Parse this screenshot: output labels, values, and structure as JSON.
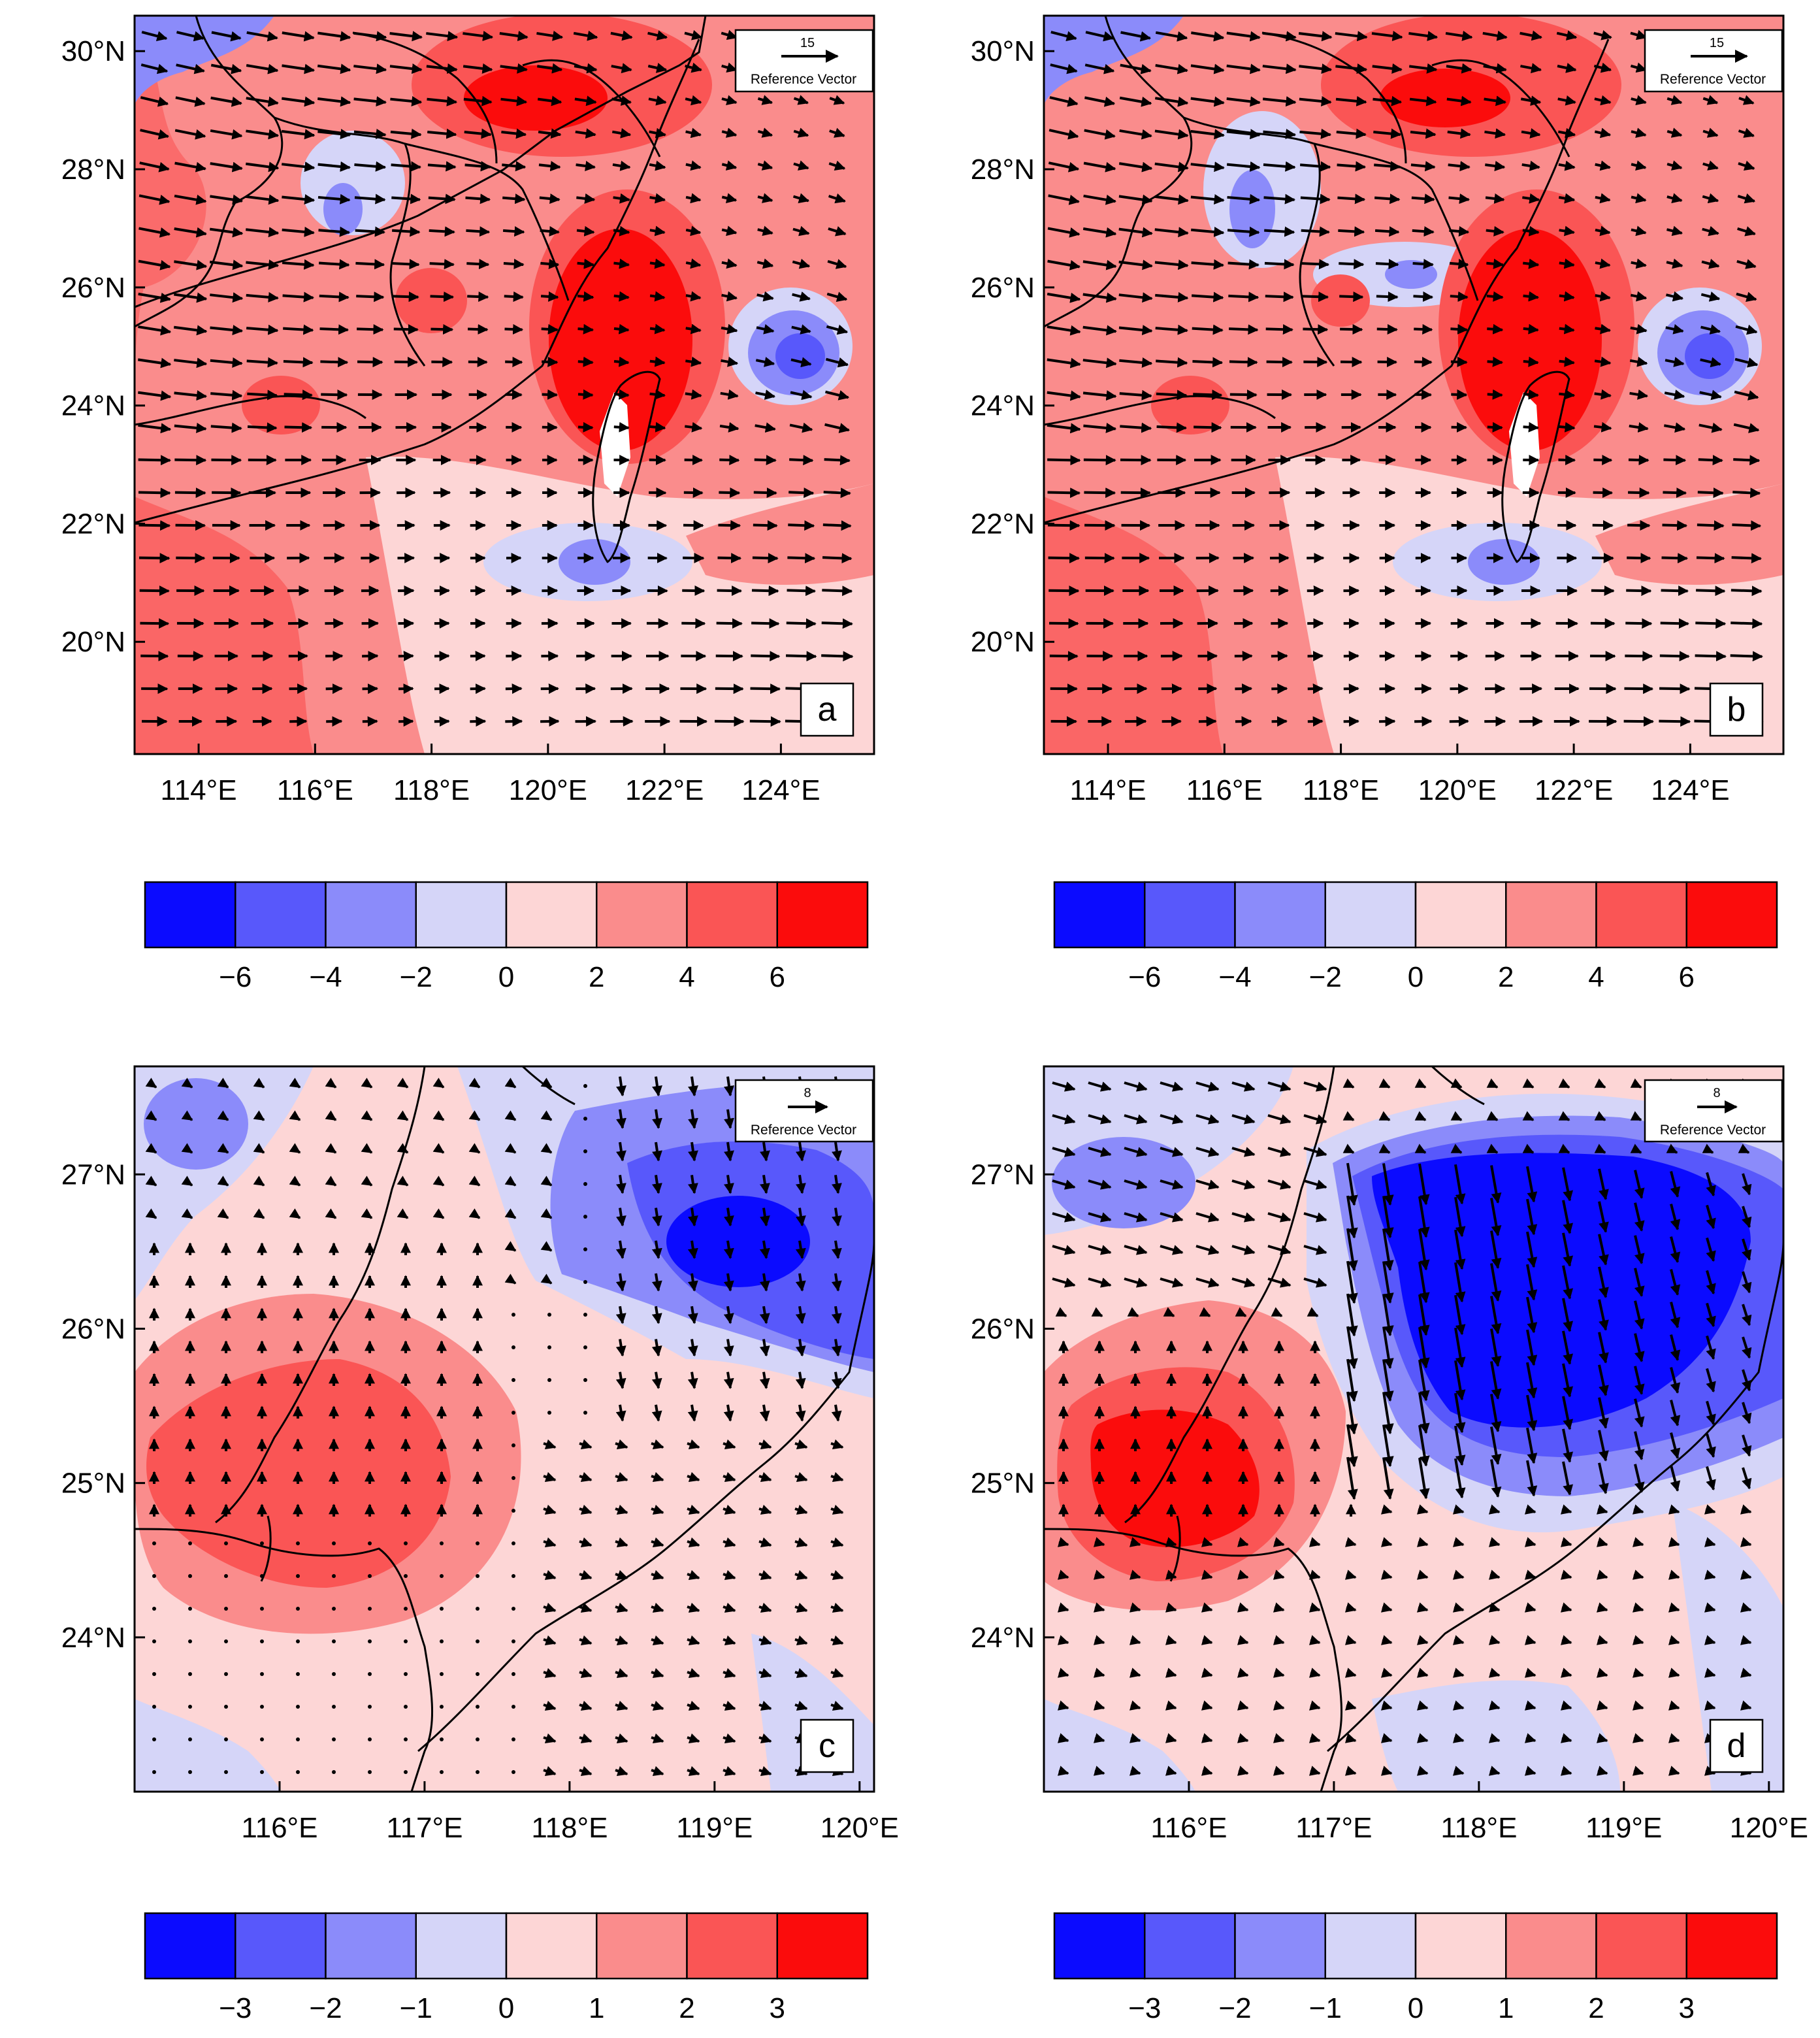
{
  "colors": {
    "levels": [
      "#0b0bff",
      "#5858fb",
      "#8b8bfa",
      "#d5d5f8",
      "#fdd6d6",
      "#fa8c8c",
      "#fa5555",
      "#fb0c0c"
    ],
    "land_border": "#000000",
    "arrow": "#000000",
    "missing": "#ffffff"
  },
  "panels": [
    {
      "letter": "a",
      "lon_range": [
        112.9,
        125.6
      ],
      "lat_range": [
        18.1,
        30.6
      ],
      "lon_ticks": [
        "114°E",
        "116°E",
        "118°E",
        "120°E",
        "122°E",
        "124°E"
      ],
      "lon_values": [
        114,
        116,
        118,
        120,
        122,
        124
      ],
      "lat_ticks": [
        "30°N",
        "28°N",
        "26°N",
        "24°N",
        "22°N",
        "20°N"
      ],
      "lat_values": [
        30,
        28,
        26,
        24,
        22,
        20
      ],
      "ref_vector": {
        "value": "15",
        "label": "Reference Vector"
      },
      "colorbar": {
        "labels": [
          "−6",
          "−4",
          "−2",
          "0",
          "2",
          "4",
          "6"
        ]
      }
    },
    {
      "letter": "b",
      "lon_range": [
        112.9,
        125.6
      ],
      "lat_range": [
        18.1,
        30.6
      ],
      "lon_ticks": [
        "114°E",
        "116°E",
        "118°E",
        "120°E",
        "122°E",
        "124°E"
      ],
      "lon_values": [
        114,
        116,
        118,
        120,
        122,
        124
      ],
      "lat_ticks": [
        "30°N",
        "28°N",
        "26°N",
        "24°N",
        "22°N",
        "20°N"
      ],
      "lat_values": [
        30,
        28,
        26,
        24,
        22,
        20
      ],
      "ref_vector": {
        "value": "15",
        "label": "Reference Vector"
      },
      "colorbar": {
        "labels": [
          "−6",
          "−4",
          "−2",
          "0",
          "2",
          "4",
          "6"
        ]
      }
    },
    {
      "letter": "c",
      "lon_range": [
        115.0,
        120.1
      ],
      "lat_range": [
        23.0,
        27.7
      ],
      "lon_ticks": [
        "116°E",
        "117°E",
        "118°E",
        "119°E",
        "120°E"
      ],
      "lon_values": [
        116,
        117,
        118,
        119,
        120
      ],
      "lat_ticks": [
        "27°N",
        "26°N",
        "25°N",
        "24°N"
      ],
      "lat_values": [
        27,
        26,
        25,
        24
      ],
      "ref_vector": {
        "value": "8",
        "label": "Reference Vector"
      },
      "colorbar": {
        "labels": [
          "−3",
          "−2",
          "−1",
          "0",
          "1",
          "2",
          "3"
        ]
      }
    },
    {
      "letter": "d",
      "lon_range": [
        115.0,
        120.1
      ],
      "lat_range": [
        23.0,
        27.7
      ],
      "lon_ticks": [
        "116°E",
        "117°E",
        "118°E",
        "119°E",
        "120°E"
      ],
      "lon_values": [
        116,
        117,
        118,
        119,
        120
      ],
      "lat_ticks": [
        "27°N",
        "26°N",
        "25°N",
        "24°N"
      ],
      "lat_values": [
        27,
        26,
        25,
        24
      ],
      "ref_vector": {
        "value": "8",
        "label": "Reference Vector"
      },
      "colorbar": {
        "labels": [
          "−3",
          "−2",
          "−1",
          "0",
          "1",
          "2",
          "3"
        ]
      }
    }
  ]
}
